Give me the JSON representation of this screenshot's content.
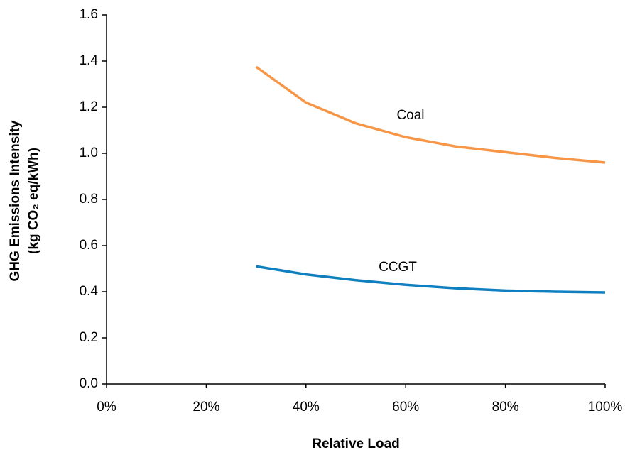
{
  "chart_data": {
    "type": "line",
    "x_label": "Relative Load",
    "y_label": [
      "GHG Emissions Intensity",
      "(kg CO₂ eq/kWh)"
    ],
    "x": [
      30,
      40,
      50,
      60,
      70,
      80,
      90,
      100
    ],
    "series": [
      {
        "name": "Coal",
        "color": "#f79646",
        "values": [
          1.375,
          1.22,
          1.13,
          1.07,
          1.03,
          1.005,
          0.98,
          0.96
        ]
      },
      {
        "name": "CCGT",
        "color": "#0f7fc0",
        "values": [
          0.51,
          0.475,
          0.45,
          0.43,
          0.415,
          0.405,
          0.4,
          0.397
        ]
      }
    ],
    "xlim": [
      0,
      100
    ],
    "xticks": [
      {
        "value": 0,
        "label": "0%"
      },
      {
        "value": 20,
        "label": "20%"
      },
      {
        "value": 40,
        "label": "40%"
      },
      {
        "value": 60,
        "label": "60%"
      },
      {
        "value": 80,
        "label": "80%"
      },
      {
        "value": 100,
        "label": "100%"
      }
    ],
    "ylim": [
      0,
      1.6
    ],
    "yticks": [
      {
        "value": 0,
        "label": "0.0"
      },
      0.2,
      0.4,
      0.6,
      0.8,
      {
        "value": 1,
        "label": "1.0"
      },
      1.2,
      1.4,
      1.6
    ],
    "grid": false
  }
}
